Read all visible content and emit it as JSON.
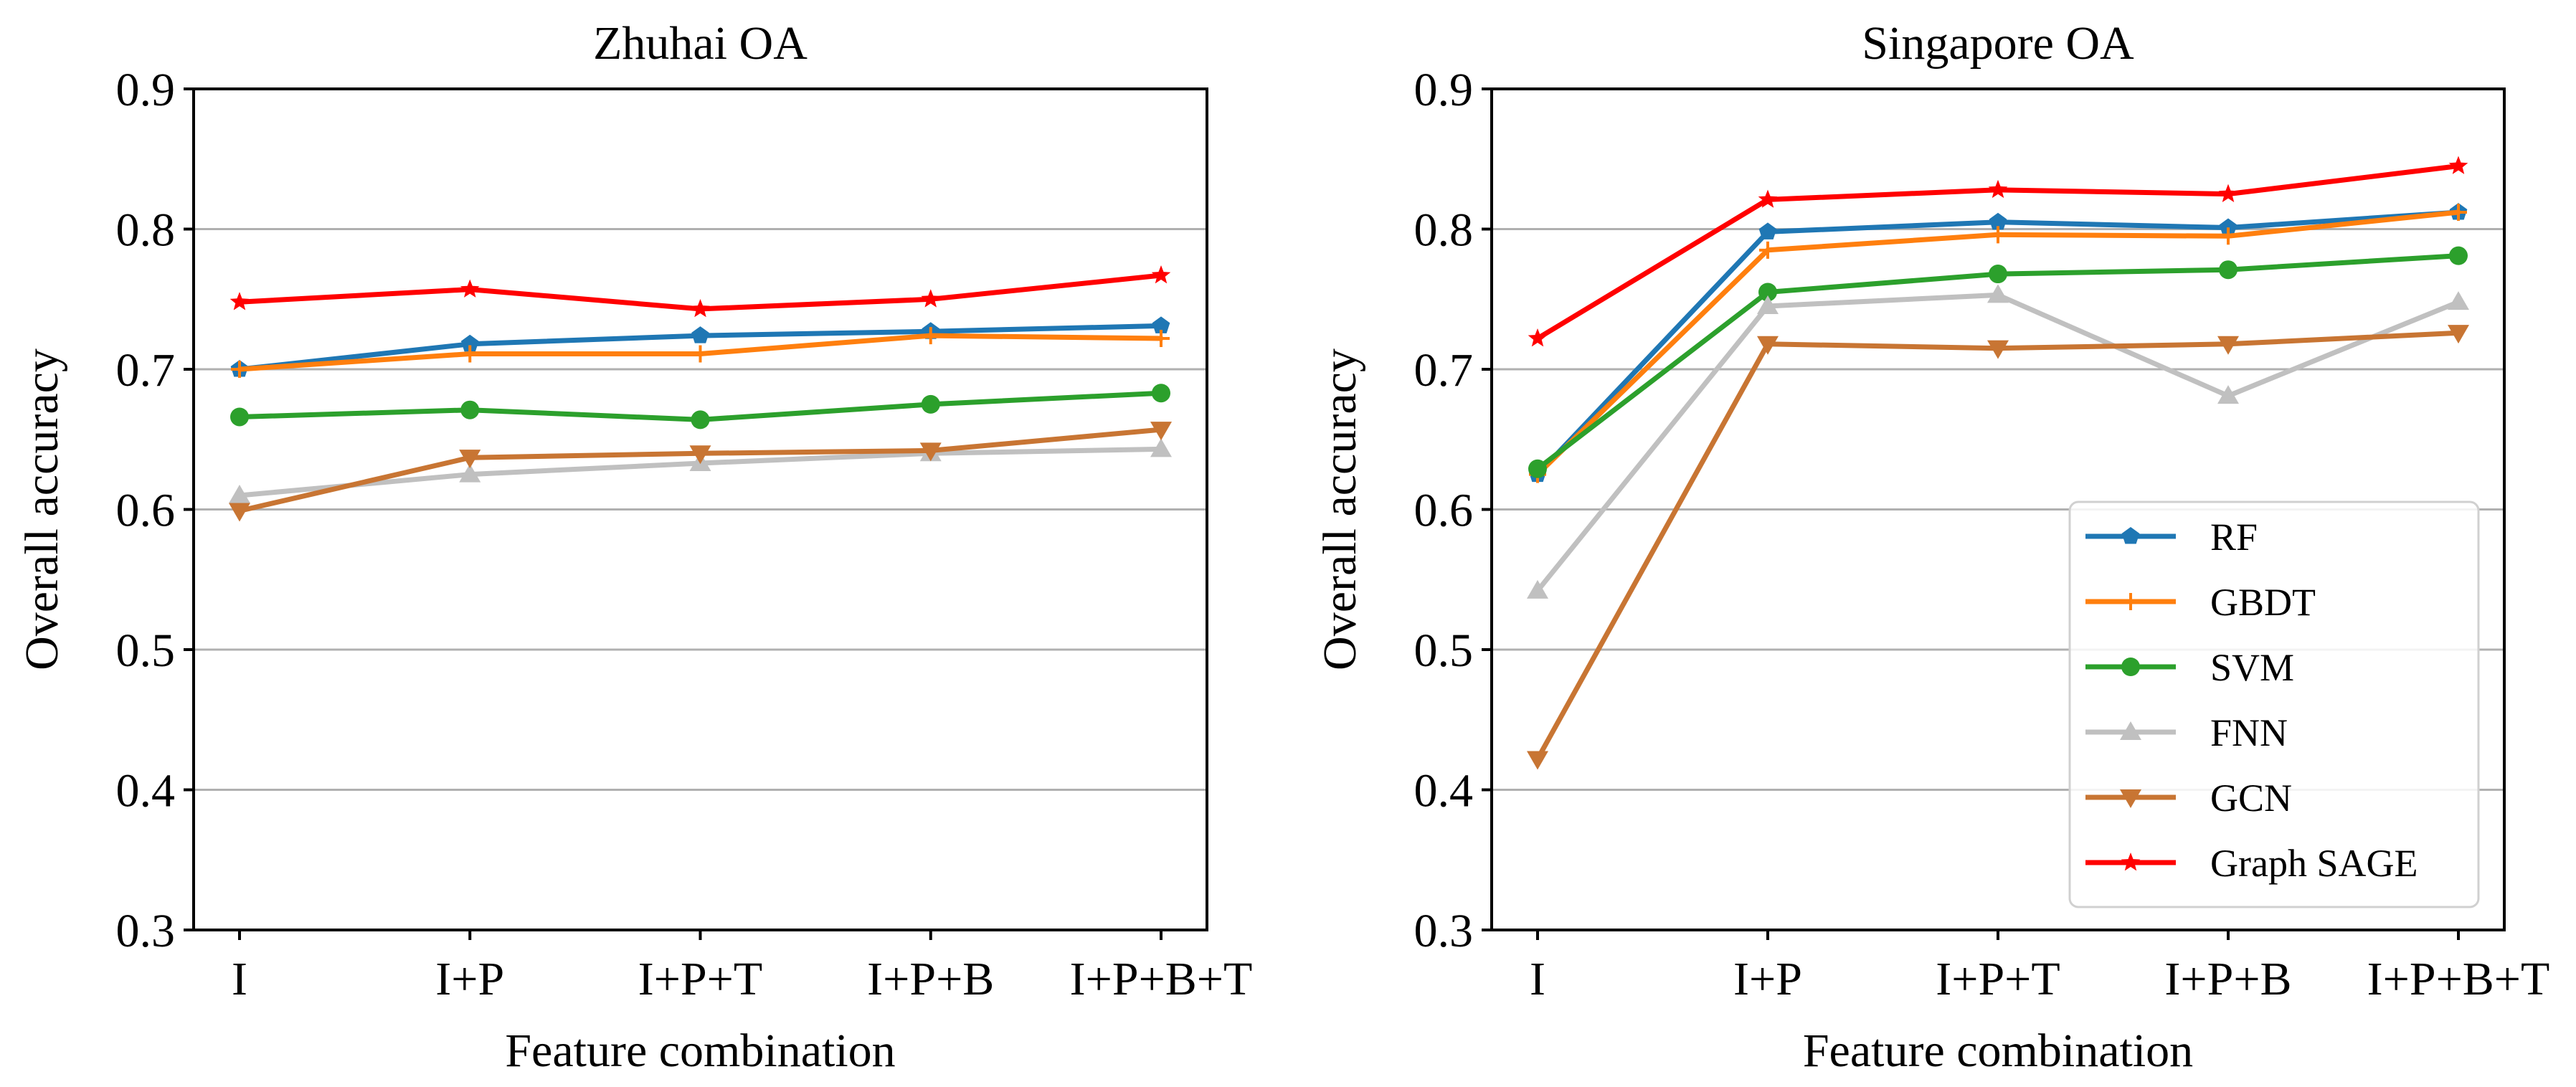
{
  "chart_data": [
    {
      "type": "line",
      "title": "Zhuhai OA",
      "xlabel": "Feature combination",
      "ylabel": "Overall accuracy",
      "categories": [
        "I",
        "I+P",
        "I+P+T",
        "I+P+B",
        "I+P+B+T"
      ],
      "ylim": [
        0.3,
        0.9
      ],
      "yticks": [
        "0.3",
        "0.4",
        "0.5",
        "0.6",
        "0.7",
        "0.8",
        "0.9"
      ],
      "grid": "horizontal",
      "series": [
        {
          "name": "RF",
          "color": "#1f77b4",
          "marker": "pentagon",
          "values": [
            0.7,
            0.718,
            0.724,
            0.727,
            0.731
          ]
        },
        {
          "name": "GBDT",
          "color": "#ff7f0e",
          "marker": "plus",
          "values": [
            0.7,
            0.711,
            0.711,
            0.724,
            0.722
          ]
        },
        {
          "name": "SVM",
          "color": "#2ca02c",
          "marker": "circle",
          "values": [
            0.666,
            0.671,
            0.664,
            0.675,
            0.683
          ]
        },
        {
          "name": "FNN",
          "color": "#c0c0c0",
          "marker": "triangle-up",
          "values": [
            0.61,
            0.625,
            0.633,
            0.64,
            0.643
          ]
        },
        {
          "name": "GCN",
          "color": "#c87533",
          "marker": "triangle-down",
          "values": [
            0.599,
            0.637,
            0.64,
            0.642,
            0.657
          ]
        },
        {
          "name": "Graph SAGE",
          "color": "#ff0000",
          "marker": "star",
          "values": [
            0.748,
            0.757,
            0.743,
            0.75,
            0.767
          ]
        }
      ]
    },
    {
      "type": "line",
      "title": "Singapore OA",
      "xlabel": "Feature combination",
      "ylabel": "Overall accuracy",
      "categories": [
        "I",
        "I+P",
        "I+P+T",
        "I+P+B",
        "I+P+B+T"
      ],
      "ylim": [
        0.3,
        0.9
      ],
      "yticks": [
        "0.3",
        "0.4",
        "0.5",
        "0.6",
        "0.7",
        "0.8",
        "0.9"
      ],
      "grid": "horizontal",
      "legend": "lower-right",
      "series": [
        {
          "name": "RF",
          "color": "#1f77b4",
          "marker": "pentagon",
          "values": [
            0.625,
            0.798,
            0.805,
            0.801,
            0.812
          ]
        },
        {
          "name": "GBDT",
          "color": "#ff7f0e",
          "marker": "plus",
          "values": [
            0.625,
            0.785,
            0.796,
            0.795,
            0.812
          ]
        },
        {
          "name": "SVM",
          "color": "#2ca02c",
          "marker": "circle",
          "values": [
            0.629,
            0.755,
            0.768,
            0.771,
            0.781
          ]
        },
        {
          "name": "FNN",
          "color": "#c0c0c0",
          "marker": "triangle-up",
          "values": [
            0.542,
            0.745,
            0.753,
            0.681,
            0.748
          ]
        },
        {
          "name": "GCN",
          "color": "#c87533",
          "marker": "triangle-down",
          "values": [
            0.422,
            0.718,
            0.715,
            0.718,
            0.726
          ]
        },
        {
          "name": "Graph SAGE",
          "color": "#ff0000",
          "marker": "star",
          "values": [
            0.722,
            0.821,
            0.828,
            0.825,
            0.845
          ]
        }
      ]
    }
  ]
}
